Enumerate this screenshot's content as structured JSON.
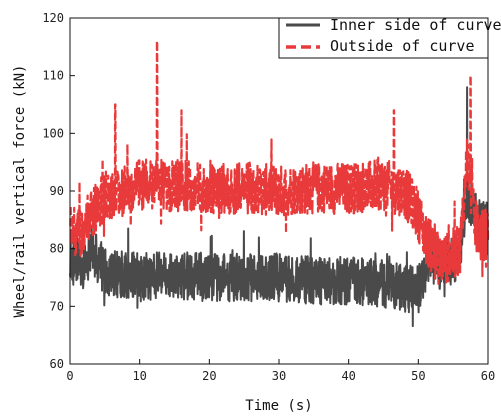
{
  "chart_data": {
    "type": "line",
    "xlabel": "Time (s)",
    "ylabel": "Wheel/rail vertical force (kN)",
    "xlim": [
      0,
      60
    ],
    "ylim": [
      60,
      120
    ],
    "xticks": [
      0,
      10,
      20,
      30,
      40,
      50,
      60
    ],
    "yticks": [
      60,
      70,
      80,
      90,
      100,
      110,
      120
    ],
    "legend_position": "top-right",
    "series": [
      {
        "name": "Inner side of curve",
        "color": "#4a4a4a",
        "style": "solid",
        "x": [
          0,
          2,
          3,
          5,
          10,
          15,
          20,
          25,
          30,
          35,
          40,
          45,
          49,
          50,
          51,
          52,
          53,
          55,
          56,
          57,
          58,
          59,
          60
        ],
        "y": [
          79,
          77,
          80,
          76,
          75,
          75.5,
          75,
          75,
          75,
          74.5,
          74.5,
          74,
          73,
          73,
          76,
          80,
          77,
          78,
          79,
          90,
          86,
          84,
          85
        ]
      },
      {
        "name": "Outside of curve",
        "color": "#e83a3a",
        "style": "dashed",
        "x": [
          0,
          1,
          2,
          3,
          5,
          10,
          15,
          20,
          25,
          30,
          35,
          40,
          45,
          48,
          50,
          51,
          52,
          53,
          55,
          56,
          57,
          58,
          59,
          60
        ],
        "y": [
          85,
          82,
          84,
          86,
          89,
          91,
          91,
          90.5,
          90.5,
          90,
          90.5,
          90.5,
          91,
          90,
          86,
          82,
          80,
          78,
          79,
          80,
          96,
          85,
          82,
          83
        ]
      }
    ],
    "annotations": [
      {
        "x": 6.5,
        "y": 105,
        "series": "Outside of curve"
      },
      {
        "x": 12.5,
        "y": 116,
        "series": "Outside of curve"
      },
      {
        "x": 16,
        "y": 104,
        "series": "Outside of curve"
      },
      {
        "x": 46.5,
        "y": 104,
        "series": "Outside of curve"
      },
      {
        "x": 57.5,
        "y": 110,
        "series": "Outside of curve"
      },
      {
        "x": 57,
        "y": 108,
        "series": "Inner side of curve"
      }
    ]
  }
}
